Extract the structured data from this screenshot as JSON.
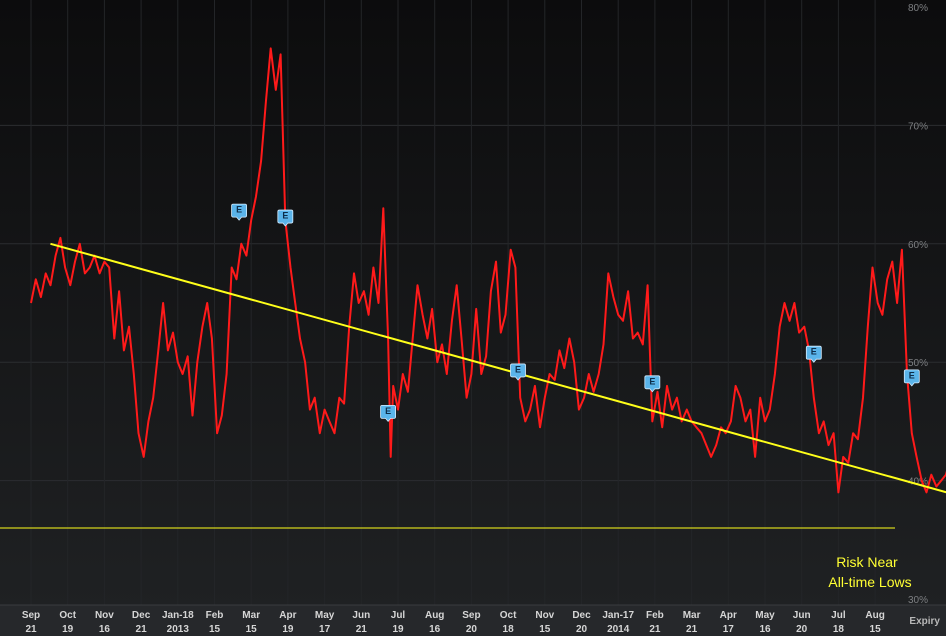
{
  "chart_data": {
    "type": "line",
    "y_axis": {
      "ticks": [
        "80%",
        "70%",
        "60%",
        "50%",
        "40%",
        "30%"
      ],
      "min": 30,
      "max": 80,
      "position": "right"
    },
    "x_axis": {
      "ticks": [
        {
          "top": "Sep",
          "bottom": "21"
        },
        {
          "top": "Oct",
          "bottom": "19"
        },
        {
          "top": "Nov",
          "bottom": "16"
        },
        {
          "top": "Dec",
          "bottom": "21"
        },
        {
          "top": "Jan-18",
          "bottom": "2013"
        },
        {
          "top": "Feb",
          "bottom": "15"
        },
        {
          "top": "Mar",
          "bottom": "15"
        },
        {
          "top": "Apr",
          "bottom": "19"
        },
        {
          "top": "May",
          "bottom": "17"
        },
        {
          "top": "Jun",
          "bottom": "21"
        },
        {
          "top": "Jul",
          "bottom": "19"
        },
        {
          "top": "Aug",
          "bottom": "16"
        },
        {
          "top": "Sep",
          "bottom": "20"
        },
        {
          "top": "Oct",
          "bottom": "18"
        },
        {
          "top": "Nov",
          "bottom": "15"
        },
        {
          "top": "Dec",
          "bottom": "20"
        },
        {
          "top": "Jan-17",
          "bottom": "2014"
        },
        {
          "top": "Feb",
          "bottom": "21"
        },
        {
          "top": "Mar",
          "bottom": "21"
        },
        {
          "top": "Apr",
          "bottom": "17"
        },
        {
          "top": "May",
          "bottom": "16"
        },
        {
          "top": "Jun",
          "bottom": "20"
        },
        {
          "top": "Jul",
          "bottom": "18"
        },
        {
          "top": "Aug",
          "bottom": "15"
        }
      ],
      "corner_label": "Expiry"
    },
    "series": [
      {
        "color": "#ff1a1a",
        "points": [
          [
            0.0,
            55.0
          ],
          [
            0.13,
            57.0
          ],
          [
            0.27,
            55.5
          ],
          [
            0.4,
            57.5
          ],
          [
            0.53,
            56.5
          ],
          [
            0.67,
            59.0
          ],
          [
            0.8,
            60.5
          ],
          [
            0.93,
            58.0
          ],
          [
            1.07,
            56.5
          ],
          [
            1.2,
            58.5
          ],
          [
            1.33,
            60.0
          ],
          [
            1.47,
            57.5
          ],
          [
            1.6,
            58.0
          ],
          [
            1.73,
            59.0
          ],
          [
            1.87,
            57.5
          ],
          [
            2.0,
            58.5
          ],
          [
            2.13,
            58.0
          ],
          [
            2.27,
            52.0
          ],
          [
            2.4,
            56.0
          ],
          [
            2.53,
            51.0
          ],
          [
            2.67,
            53.0
          ],
          [
            2.8,
            49.0
          ],
          [
            2.93,
            44.0
          ],
          [
            3.07,
            42.0
          ],
          [
            3.2,
            45.0
          ],
          [
            3.33,
            47.0
          ],
          [
            3.47,
            51.0
          ],
          [
            3.6,
            55.0
          ],
          [
            3.73,
            51.0
          ],
          [
            3.87,
            52.5
          ],
          [
            4.0,
            50.0
          ],
          [
            4.13,
            49.0
          ],
          [
            4.27,
            50.5
          ],
          [
            4.4,
            45.5
          ],
          [
            4.53,
            50.0
          ],
          [
            4.67,
            53.0
          ],
          [
            4.8,
            55.0
          ],
          [
            4.93,
            52.0
          ],
          [
            5.07,
            44.0
          ],
          [
            5.2,
            45.5
          ],
          [
            5.33,
            49.0
          ],
          [
            5.47,
            58.0
          ],
          [
            5.6,
            57.0
          ],
          [
            5.73,
            60.0
          ],
          [
            5.87,
            59.0
          ],
          [
            6.0,
            62.0
          ],
          [
            6.13,
            64.0
          ],
          [
            6.27,
            67.0
          ],
          [
            6.4,
            72.0
          ],
          [
            6.53,
            76.5
          ],
          [
            6.67,
            73.0
          ],
          [
            6.8,
            76.0
          ],
          [
            6.93,
            62.0
          ],
          [
            7.07,
            58.0
          ],
          [
            7.2,
            55.0
          ],
          [
            7.33,
            52.0
          ],
          [
            7.47,
            50.0
          ],
          [
            7.6,
            46.0
          ],
          [
            7.73,
            47.0
          ],
          [
            7.87,
            44.0
          ],
          [
            8.0,
            46.0
          ],
          [
            8.13,
            45.0
          ],
          [
            8.27,
            44.0
          ],
          [
            8.4,
            47.0
          ],
          [
            8.53,
            46.5
          ],
          [
            8.67,
            53.0
          ],
          [
            8.8,
            57.5
          ],
          [
            8.93,
            55.0
          ],
          [
            9.07,
            56.0
          ],
          [
            9.2,
            54.0
          ],
          [
            9.33,
            58.0
          ],
          [
            9.47,
            55.0
          ],
          [
            9.6,
            63.0
          ],
          [
            9.73,
            52.0
          ],
          [
            9.8,
            42.0
          ],
          [
            9.87,
            48.0
          ],
          [
            10.0,
            46.0
          ],
          [
            10.13,
            49.0
          ],
          [
            10.27,
            47.5
          ],
          [
            10.4,
            52.0
          ],
          [
            10.53,
            56.5
          ],
          [
            10.67,
            54.0
          ],
          [
            10.8,
            52.0
          ],
          [
            10.93,
            54.5
          ],
          [
            11.07,
            50.0
          ],
          [
            11.2,
            51.5
          ],
          [
            11.33,
            49.0
          ],
          [
            11.47,
            53.5
          ],
          [
            11.6,
            56.5
          ],
          [
            11.73,
            52.0
          ],
          [
            11.87,
            47.0
          ],
          [
            12.0,
            49.0
          ],
          [
            12.13,
            54.5
          ],
          [
            12.27,
            49.0
          ],
          [
            12.4,
            50.5
          ],
          [
            12.53,
            56.0
          ],
          [
            12.67,
            58.5
          ],
          [
            12.8,
            52.5
          ],
          [
            12.93,
            54.0
          ],
          [
            13.07,
            59.5
          ],
          [
            13.2,
            58.0
          ],
          [
            13.33,
            47.0
          ],
          [
            13.47,
            45.0
          ],
          [
            13.6,
            46.0
          ],
          [
            13.73,
            48.0
          ],
          [
            13.87,
            44.5
          ],
          [
            14.0,
            47.0
          ],
          [
            14.13,
            49.0
          ],
          [
            14.27,
            48.5
          ],
          [
            14.4,
            51.0
          ],
          [
            14.53,
            49.5
          ],
          [
            14.67,
            52.0
          ],
          [
            14.8,
            50.0
          ],
          [
            14.93,
            46.0
          ],
          [
            15.07,
            47.0
          ],
          [
            15.2,
            49.0
          ],
          [
            15.33,
            47.5
          ],
          [
            15.47,
            49.0
          ],
          [
            15.6,
            51.5
          ],
          [
            15.73,
            57.5
          ],
          [
            15.87,
            55.5
          ],
          [
            16.0,
            54.0
          ],
          [
            16.13,
            53.5
          ],
          [
            16.27,
            56.0
          ],
          [
            16.4,
            52.0
          ],
          [
            16.53,
            52.5
          ],
          [
            16.67,
            51.5
          ],
          [
            16.8,
            56.5
          ],
          [
            16.93,
            45.0
          ],
          [
            17.07,
            47.5
          ],
          [
            17.2,
            44.5
          ],
          [
            17.33,
            48.0
          ],
          [
            17.47,
            46.0
          ],
          [
            17.6,
            47.0
          ],
          [
            17.73,
            45.0
          ],
          [
            17.87,
            46.0
          ],
          [
            18.0,
            45.0
          ],
          [
            18.13,
            44.5
          ],
          [
            18.27,
            44.0
          ],
          [
            18.4,
            43.0
          ],
          [
            18.53,
            42.0
          ],
          [
            18.67,
            43.0
          ],
          [
            18.8,
            44.5
          ],
          [
            18.93,
            44.0
          ],
          [
            19.07,
            45.0
          ],
          [
            19.2,
            48.0
          ],
          [
            19.33,
            47.0
          ],
          [
            19.47,
            45.0
          ],
          [
            19.6,
            46.0
          ],
          [
            19.73,
            42.0
          ],
          [
            19.87,
            47.0
          ],
          [
            20.0,
            45.0
          ],
          [
            20.13,
            46.0
          ],
          [
            20.27,
            49.0
          ],
          [
            20.4,
            53.0
          ],
          [
            20.53,
            55.0
          ],
          [
            20.67,
            53.5
          ],
          [
            20.8,
            55.0
          ],
          [
            20.93,
            52.5
          ],
          [
            21.07,
            53.0
          ],
          [
            21.2,
            51.0
          ],
          [
            21.33,
            47.0
          ],
          [
            21.47,
            44.0
          ],
          [
            21.6,
            45.0
          ],
          [
            21.73,
            43.0
          ],
          [
            21.87,
            44.0
          ],
          [
            22.0,
            39.0
          ],
          [
            22.13,
            42.0
          ],
          [
            22.27,
            41.5
          ],
          [
            22.4,
            44.0
          ],
          [
            22.53,
            43.5
          ],
          [
            22.67,
            47.0
          ],
          [
            22.8,
            53.0
          ],
          [
            22.93,
            58.0
          ],
          [
            23.07,
            55.0
          ],
          [
            23.2,
            54.0
          ],
          [
            23.33,
            57.0
          ],
          [
            23.47,
            58.5
          ],
          [
            23.6,
            55.0
          ],
          [
            23.73,
            59.5
          ],
          [
            23.87,
            49.0
          ],
          [
            24.0,
            44.0
          ],
          [
            24.13,
            42.0
          ],
          [
            24.27,
            40.0
          ],
          [
            24.4,
            39.0
          ],
          [
            24.53,
            40.5
          ],
          [
            24.67,
            39.5
          ],
          [
            24.8,
            40.0
          ],
          [
            24.93,
            40.5
          ],
          [
            25.07,
            42.0
          ],
          [
            25.2,
            40.0
          ],
          [
            25.33,
            41.0
          ],
          [
            25.47,
            39.0
          ],
          [
            25.6,
            40.0
          ],
          [
            25.73,
            39.5
          ],
          [
            25.87,
            45.0
          ],
          [
            26.0,
            43.5
          ],
          [
            26.13,
            49.0
          ],
          [
            26.27,
            51.0
          ],
          [
            26.4,
            52.0
          ],
          [
            26.53,
            51.5
          ],
          [
            26.67,
            50.0
          ],
          [
            26.8,
            52.0
          ],
          [
            26.93,
            52.0
          ],
          [
            27.07,
            51.5
          ],
          [
            27.2,
            53.0
          ],
          [
            27.33,
            56.0
          ],
          [
            27.47,
            50.0
          ],
          [
            27.6,
            42.0
          ],
          [
            27.73,
            40.0
          ],
          [
            27.87,
            37.0
          ],
          [
            28.0,
            35.5
          ],
          [
            28.13,
            35.0
          ],
          [
            28.27,
            34.5
          ],
          [
            28.4,
            36.0
          ]
        ]
      }
    ],
    "trendline": {
      "color": "#ffff1a",
      "from": [
        0.53,
        60.0
      ],
      "to": [
        28.45,
        36.0
      ]
    },
    "horizontal_line": {
      "color": "#ffff1a",
      "y": 36.0
    },
    "earnings_markers": [
      {
        "label": "E",
        "x": 5.67,
        "y": 62.0
      },
      {
        "label": "E",
        "x": 6.93,
        "y": 61.5
      },
      {
        "label": "E",
        "x": 9.73,
        "y": 45.0
      },
      {
        "label": "E",
        "x": 13.27,
        "y": 48.5
      },
      {
        "label": "E",
        "x": 16.93,
        "y": 47.5
      },
      {
        "label": "E",
        "x": 21.33,
        "y": 50.0
      },
      {
        "label": "E",
        "x": 24.0,
        "y": 48.0
      },
      {
        "label": "E",
        "x": 27.6,
        "y": 50.5
      }
    ],
    "annotation": {
      "line1": "Risk Near",
      "line2": "All-time Lows",
      "color": "#ffff33"
    },
    "grid": true
  }
}
